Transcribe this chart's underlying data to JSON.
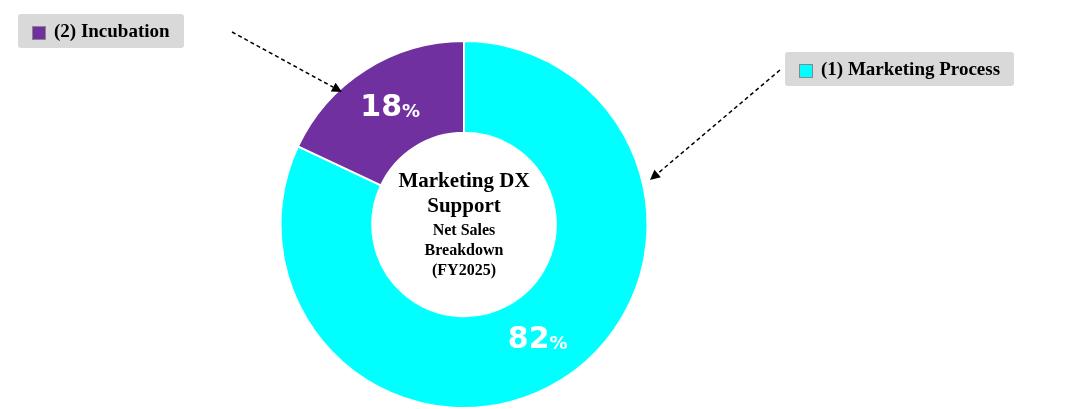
{
  "chart_data": {
    "type": "donut",
    "title": "Marketing DX Support",
    "subtitle": "Net Sales Breakdown (FY2025)",
    "categories": [
      "(1) Marketing Process",
      "(2) Incubation"
    ],
    "values": [
      82,
      18
    ],
    "colors": [
      "#00ffff",
      "#7030a0"
    ],
    "value_labels": [
      "82%",
      "18%"
    ],
    "legend": "top"
  }
}
